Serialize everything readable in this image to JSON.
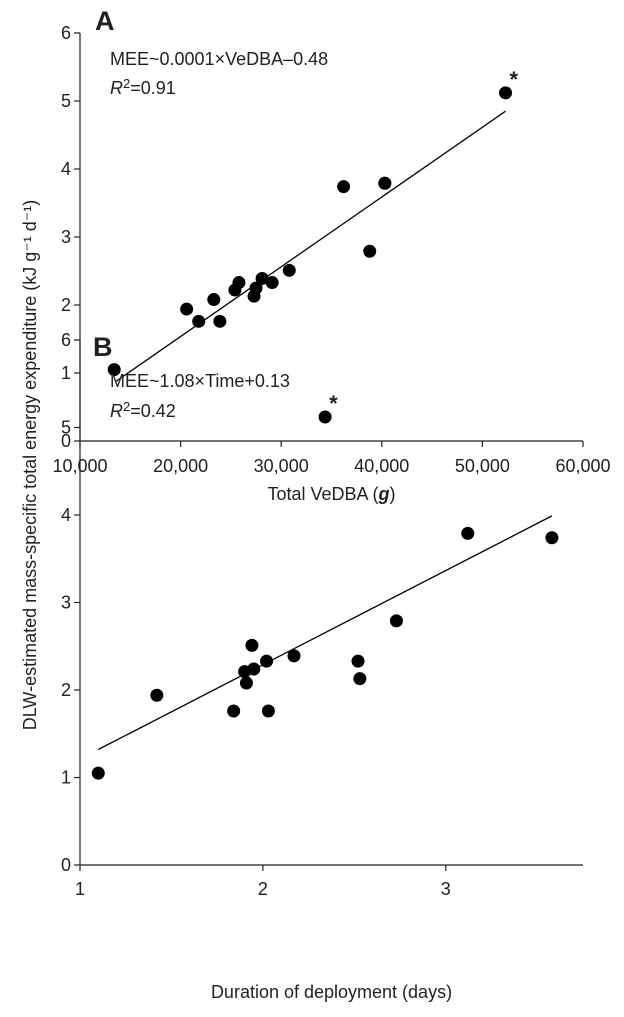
{
  "ylabel_shared": "DLW-estimated mass-specific total energy expenditure (kJ g⁻¹ d⁻¹)",
  "chart_data": [
    {
      "type": "scatter",
      "panel": "A",
      "title": "",
      "xlabel": "Total VeDBA (g)",
      "xlabel_main": "Total VeDBA (",
      "xlabel_unit": "g",
      "xlabel_close": ")",
      "ylabel": "DLW-estimated mass-specific total energy expenditure (kJ g⁻¹ d⁻¹)",
      "xlim": [
        10000,
        60000
      ],
      "ylim": [
        0,
        6
      ],
      "xticks": [
        10000,
        20000,
        30000,
        40000,
        50000,
        60000
      ],
      "xtick_labels": [
        "10,000",
        "20,000",
        "30,000",
        "40,000",
        "50,000",
        "60,000"
      ],
      "yticks": [
        0,
        1,
        2,
        3,
        4,
        5,
        6
      ],
      "ytick_labels": [
        "0",
        "1",
        "2",
        "3",
        "4",
        "5",
        "6"
      ],
      "equation": "MEE~0.0001×VeDBA–0.48",
      "r2_label": "R",
      "r2_sup": "2",
      "r2_value": "=0.91",
      "fit_line": {
        "x": [
          13600,
          52300
        ],
        "y": [
          0.88,
          4.85
        ]
      },
      "outlier_marker": "*",
      "outlier_index": 16,
      "points": [
        {
          "x": 13400,
          "y": 1.05
        },
        {
          "x": 20600,
          "y": 1.94
        },
        {
          "x": 21800,
          "y": 1.76
        },
        {
          "x": 23300,
          "y": 2.08
        },
        {
          "x": 23900,
          "y": 1.76
        },
        {
          "x": 25400,
          "y": 2.22
        },
        {
          "x": 25800,
          "y": 2.33
        },
        {
          "x": 27300,
          "y": 2.13
        },
        {
          "x": 27500,
          "y": 2.25
        },
        {
          "x": 28100,
          "y": 2.39
        },
        {
          "x": 29100,
          "y": 2.33
        },
        {
          "x": 30800,
          "y": 2.51
        },
        {
          "x": 36200,
          "y": 3.74
        },
        {
          "x": 38800,
          "y": 2.79
        },
        {
          "x": 40300,
          "y": 3.79
        },
        {
          "x": 40300,
          "y": 3.79
        },
        {
          "x": 52300,
          "y": 5.12
        }
      ]
    },
    {
      "type": "scatter",
      "panel": "B",
      "title": "",
      "xlabel": "Duration of deployment (days)",
      "ylabel": "DLW-estimated mass-specific total energy expenditure (kJ g⁻¹ d⁻¹)",
      "xlim": [
        1,
        3.75
      ],
      "ylim": [
        0,
        6
      ],
      "xticks": [
        1,
        2,
        3
      ],
      "xtick_labels": [
        "1",
        "2",
        "3"
      ],
      "yticks": [
        0,
        1,
        2,
        3,
        4,
        5,
        6
      ],
      "ytick_labels": [
        "0",
        "1",
        "2",
        "3",
        "4",
        "5",
        "6"
      ],
      "equation": "MEE~1.08×Time+0.13",
      "r2_label": "R",
      "r2_sup": "2",
      "r2_value": "=0.42",
      "fit_line": {
        "x": [
          1.1,
          3.58
        ],
        "y": [
          1.32,
          3.99
        ]
      },
      "outlier_marker": "*",
      "outlier_index": 15,
      "points": [
        {
          "x": 1.1,
          "y": 1.05
        },
        {
          "x": 1.42,
          "y": 1.94
        },
        {
          "x": 1.84,
          "y": 1.76
        },
        {
          "x": 1.9,
          "y": 2.21
        },
        {
          "x": 1.91,
          "y": 2.08
        },
        {
          "x": 1.94,
          "y": 2.51
        },
        {
          "x": 1.95,
          "y": 2.24
        },
        {
          "x": 2.02,
          "y": 2.33
        },
        {
          "x": 2.03,
          "y": 1.76
        },
        {
          "x": 2.17,
          "y": 2.39
        },
        {
          "x": 2.52,
          "y": 2.33
        },
        {
          "x": 2.53,
          "y": 2.13
        },
        {
          "x": 2.73,
          "y": 2.79
        },
        {
          "x": 3.12,
          "y": 3.79
        },
        {
          "x": 3.58,
          "y": 3.74
        },
        {
          "x": 2.34,
          "y": 5.12
        }
      ]
    }
  ]
}
